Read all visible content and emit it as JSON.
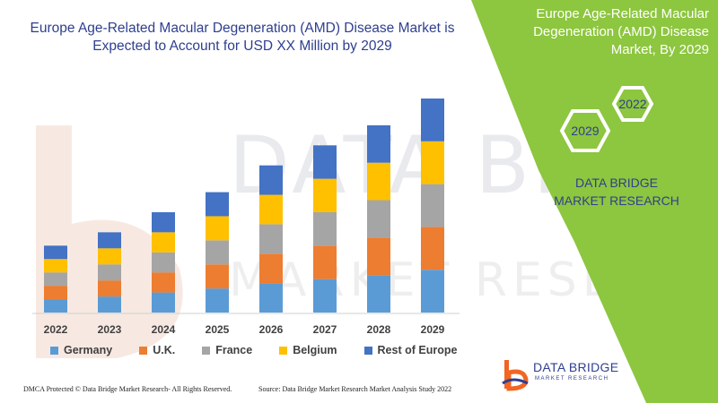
{
  "header": {
    "title": "Europe Age-Related Macular Degeneration (AMD) Disease Market is Expected to Account for USD XX Million by 2029"
  },
  "side_panel": {
    "title": "Europe Age-Related Macular Degeneration (AMD) Disease Market, By 2029",
    "hex_year_1": "2022",
    "hex_year_2": "2029",
    "brand": "DATA BRIDGE MARKET RESEARCH",
    "color": "#8dc63f"
  },
  "watermark": {
    "line1": "DATA BRIDGE",
    "line2": "MARKET RESEARCH"
  },
  "footer": {
    "left": "DMCA Protected © Data Bridge Market Research- All Rights Reserved.",
    "right": "Source: Data Bridge Market Research Market Analysis Study 2022"
  },
  "logo": {
    "name": "DATA BRIDGE",
    "sub": "MARKET RESEARCH"
  },
  "chart_data": {
    "type": "bar",
    "stacked": true,
    "title": "",
    "xlabel": "",
    "ylabel": "",
    "categories": [
      "2022",
      "2023",
      "2024",
      "2025",
      "2026",
      "2027",
      "2028",
      "2029"
    ],
    "series": [
      {
        "name": "Germany",
        "color": "#5b9bd5",
        "values": [
          10,
          12,
          15,
          18,
          22,
          25,
          28,
          32
        ]
      },
      {
        "name": "U.K.",
        "color": "#ed7d31",
        "values": [
          10,
          12,
          15,
          18,
          22,
          25,
          28,
          32
        ]
      },
      {
        "name": "France",
        "color": "#a5a5a5",
        "values": [
          10,
          12,
          15,
          18,
          22,
          25,
          28,
          32
        ]
      },
      {
        "name": "Belgium",
        "color": "#ffc000",
        "values": [
          10,
          12,
          15,
          18,
          22,
          25,
          28,
          32
        ]
      },
      {
        "name": "Rest of Europe",
        "color": "#4472c4",
        "values": [
          10,
          12,
          15,
          18,
          22,
          25,
          28,
          32
        ]
      }
    ],
    "ylim": [
      0,
      160
    ],
    "axis_visible": false,
    "grid": false,
    "legend_position": "bottom"
  }
}
